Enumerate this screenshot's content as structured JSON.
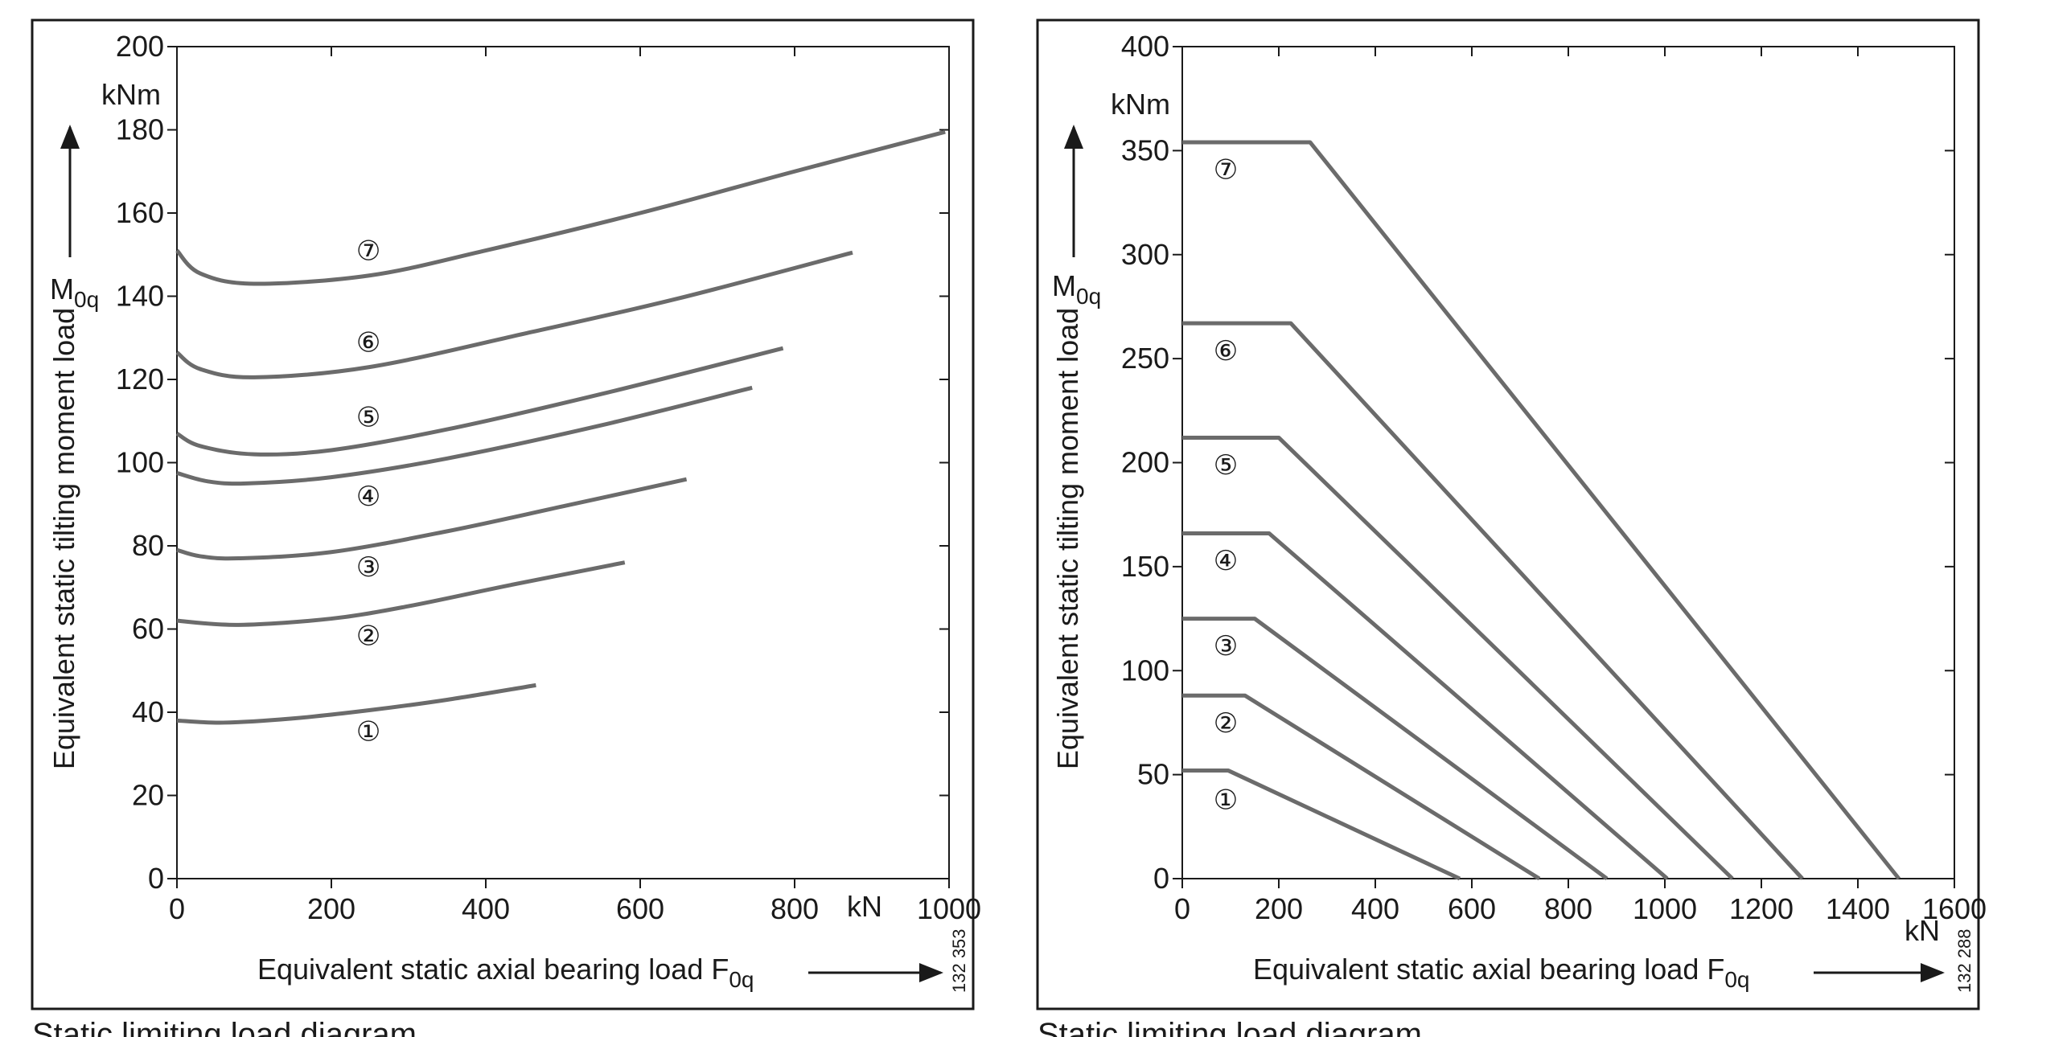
{
  "chart_data": [
    {
      "type": "line",
      "caption": "Static limiting load diagram",
      "figure_number": "132 353",
      "xlabel": "Equivalent static axial bearing load",
      "xlabel_symbol": "F",
      "xlabel_sub": "0q",
      "x_unit": "kN",
      "ylabel": "Equivalent static tilting moment load",
      "ylabel_symbol": "M",
      "ylabel_sub": "0q",
      "y_unit": "kNm",
      "xlim": [
        0,
        1000
      ],
      "ylim": [
        0,
        200
      ],
      "xticks": [
        "0",
        "200",
        "400",
        "600",
        "800",
        "1000"
      ],
      "yticks": [
        "0",
        "20",
        "40",
        "60",
        "80",
        "100",
        "120",
        "140",
        "160",
        "180",
        "200"
      ],
      "grid": false,
      "series": [
        {
          "name": "①",
          "points": [
            [
              0,
              38
            ],
            [
              60,
              37.5
            ],
            [
              150,
              38.5
            ],
            [
              250,
              40.5
            ],
            [
              350,
              43
            ],
            [
              465,
              46.5
            ]
          ],
          "label_at": [
            248,
            35.5
          ]
        },
        {
          "name": "②",
          "points": [
            [
              0,
              62
            ],
            [
              80,
              61
            ],
            [
              200,
              62.5
            ],
            [
              300,
              65.5
            ],
            [
              430,
              70.5
            ],
            [
              580,
              76
            ]
          ],
          "label_at": [
            248,
            58.5
          ]
        },
        {
          "name": "③",
          "points": [
            [
              0,
              79
            ],
            [
              30,
              77.5
            ],
            [
              80,
              77
            ],
            [
              200,
              78.5
            ],
            [
              350,
              83.5
            ],
            [
              500,
              89.5
            ],
            [
              660,
              96
            ]
          ],
          "label_at": [
            248,
            75
          ]
        },
        {
          "name": "④",
          "points": [
            [
              0,
              97.5
            ],
            [
              40,
              95.5
            ],
            [
              90,
              95
            ],
            [
              200,
              96.5
            ],
            [
              350,
              101
            ],
            [
              550,
              109
            ],
            [
              745,
              118
            ]
          ],
          "label_at": [
            248,
            92
          ]
        },
        {
          "name": "⑤",
          "points": [
            [
              0,
              107
            ],
            [
              30,
              104
            ],
            [
              100,
              102
            ],
            [
              200,
              103
            ],
            [
              350,
              108
            ],
            [
              550,
              116.5
            ],
            [
              785,
              127.5
            ]
          ],
          "label_at": [
            248,
            111
          ]
        },
        {
          "name": "⑥",
          "points": [
            [
              0,
              126.5
            ],
            [
              30,
              122.5
            ],
            [
              100,
              120.5
            ],
            [
              250,
              123
            ],
            [
              450,
              131
            ],
            [
              650,
              139.5
            ],
            [
              875,
              150.5
            ]
          ],
          "label_at": [
            248,
            129
          ]
        },
        {
          "name": "⑦",
          "points": [
            [
              0,
              151
            ],
            [
              30,
              145.5
            ],
            [
              100,
              143
            ],
            [
              250,
              145
            ],
            [
              400,
              151
            ],
            [
              600,
              160
            ],
            [
              800,
              170
            ],
            [
              995,
              179.5
            ]
          ],
          "label_at": [
            248,
            151
          ]
        }
      ]
    },
    {
      "type": "line",
      "caption": "Static limiting load diagram",
      "figure_number": "132 288",
      "xlabel": "Equivalent static axial bearing load",
      "xlabel_symbol": "F",
      "xlabel_sub": "0q",
      "x_unit": "kN",
      "ylabel": "Equivalent static tilting moment load",
      "ylabel_symbol": "M",
      "ylabel_sub": "0q",
      "y_unit": "kNm",
      "xlim": [
        0,
        1600
      ],
      "ylim": [
        0,
        400
      ],
      "xticks": [
        "0",
        "200",
        "400",
        "600",
        "800",
        "1000",
        "1200",
        "1400",
        "1600"
      ],
      "yticks": [
        "0",
        "50",
        "100",
        "150",
        "200",
        "250",
        "300",
        "350",
        "400"
      ],
      "grid": false,
      "series": [
        {
          "name": "①",
          "points": [
            [
              0,
              52
            ],
            [
              95,
              52
            ],
            [
              575,
              0
            ]
          ],
          "label_at": [
            90,
            38
          ]
        },
        {
          "name": "②",
          "points": [
            [
              0,
              88
            ],
            [
              130,
              88
            ],
            [
              740,
              0
            ]
          ],
          "label_at": [
            90,
            75
          ]
        },
        {
          "name": "③",
          "points": [
            [
              0,
              125
            ],
            [
              150,
              125
            ],
            [
              880,
              0
            ]
          ],
          "label_at": [
            90,
            112
          ]
        },
        {
          "name": "④",
          "points": [
            [
              0,
              166
            ],
            [
              180,
              166
            ],
            [
              1005,
              0
            ]
          ],
          "label_at": [
            90,
            153
          ]
        },
        {
          "name": "⑤",
          "points": [
            [
              0,
              212
            ],
            [
              200,
              212
            ],
            [
              1140,
              0
            ]
          ],
          "label_at": [
            90,
            199
          ]
        },
        {
          "name": "⑥",
          "points": [
            [
              0,
              267
            ],
            [
              225,
              267
            ],
            [
              1285,
              0
            ]
          ],
          "label_at": [
            90,
            254
          ]
        },
        {
          "name": "⑦",
          "points": [
            [
              0,
              354
            ],
            [
              265,
              354
            ],
            [
              1485,
              0
            ]
          ],
          "label_at": [
            90,
            341
          ]
        }
      ]
    }
  ]
}
